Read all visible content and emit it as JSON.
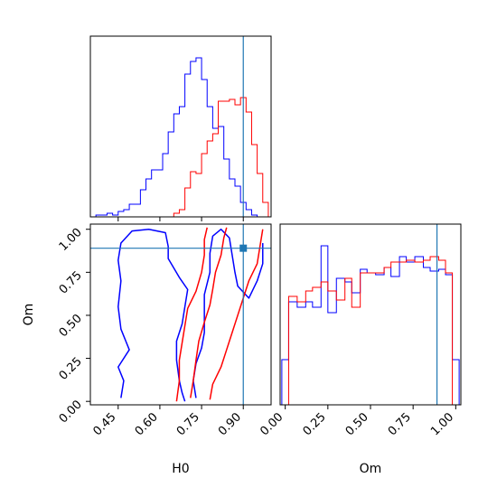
{
  "chart_data": {
    "type": "corner",
    "colors": {
      "series_a": "#0000ff",
      "series_b": "#ff0000",
      "truth": "#1f77b4"
    },
    "truth": {
      "H0": 0.9,
      "Om": 0.89
    },
    "panels": [
      {
        "id": "hist-H0",
        "type": "histogram",
        "xlim": [
          0.35,
          1.0
        ],
        "ylim": [
          0,
          1.0
        ],
        "x_ticks": [
          0.45,
          0.6,
          0.75,
          0.9
        ],
        "series": [
          {
            "color_key": "series_a",
            "bins": [
              [
                0.35,
                0.37,
                0
              ],
              [
                0.37,
                0.39,
                0.01
              ],
              [
                0.39,
                0.41,
                0.01
              ],
              [
                0.41,
                0.43,
                0.02
              ],
              [
                0.43,
                0.45,
                0.01
              ],
              [
                0.45,
                0.47,
                0.03
              ],
              [
                0.47,
                0.49,
                0.04
              ],
              [
                0.49,
                0.51,
                0.07
              ],
              [
                0.51,
                0.53,
                0.07
              ],
              [
                0.53,
                0.55,
                0.15
              ],
              [
                0.55,
                0.57,
                0.21
              ],
              [
                0.57,
                0.59,
                0.26
              ],
              [
                0.59,
                0.61,
                0.26
              ],
              [
                0.61,
                0.63,
                0.35
              ],
              [
                0.63,
                0.65,
                0.47
              ],
              [
                0.65,
                0.67,
                0.57
              ],
              [
                0.67,
                0.69,
                0.61
              ],
              [
                0.69,
                0.71,
                0.79
              ],
              [
                0.71,
                0.73,
                0.86
              ],
              [
                0.73,
                0.75,
                0.88
              ],
              [
                0.75,
                0.77,
                0.76
              ],
              [
                0.77,
                0.79,
                0.61
              ],
              [
                0.79,
                0.81,
                0.49
              ],
              [
                0.81,
                0.83,
                0.5
              ],
              [
                0.83,
                0.85,
                0.32
              ],
              [
                0.85,
                0.87,
                0.21
              ],
              [
                0.87,
                0.89,
                0.17
              ],
              [
                0.89,
                0.91,
                0.08
              ],
              [
                0.91,
                0.93,
                0.04
              ],
              [
                0.93,
                0.95,
                0.01
              ]
            ]
          },
          {
            "color_key": "series_b",
            "bins": [
              [
                0.63,
                0.65,
                0
              ],
              [
                0.65,
                0.67,
                0.02
              ],
              [
                0.67,
                0.69,
                0.04
              ],
              [
                0.69,
                0.71,
                0.16
              ],
              [
                0.71,
                0.73,
                0.25
              ],
              [
                0.73,
                0.75,
                0.24
              ],
              [
                0.75,
                0.77,
                0.35
              ],
              [
                0.77,
                0.79,
                0.42
              ],
              [
                0.79,
                0.81,
                0.46
              ],
              [
                0.81,
                0.83,
                0.64
              ],
              [
                0.83,
                0.85,
                0.64
              ],
              [
                0.85,
                0.87,
                0.65
              ],
              [
                0.87,
                0.89,
                0.62
              ],
              [
                0.89,
                0.91,
                0.66
              ],
              [
                0.91,
                0.93,
                0.58
              ],
              [
                0.93,
                0.95,
                0.4
              ],
              [
                0.95,
                0.97,
                0.24
              ],
              [
                0.97,
                0.99,
                0.08
              ]
            ]
          }
        ]
      },
      {
        "id": "contour-H0-Om",
        "type": "contour",
        "xlabel": "H0",
        "ylabel": "Om",
        "xlim": [
          0.35,
          1.0
        ],
        "ylim": [
          -0.02,
          1.03
        ],
        "x_ticks": [
          0.45,
          0.6,
          0.75,
          0.9
        ],
        "y_ticks": [
          0.0,
          0.25,
          0.5,
          0.75,
          1.0
        ],
        "series": [
          {
            "color_key": "series_a",
            "contours": [
              [
                [
                  0.46,
                  0.02
                ],
                [
                  0.47,
                  0.12
                ],
                [
                  0.45,
                  0.2
                ],
                [
                  0.49,
                  0.3
                ],
                [
                  0.46,
                  0.42
                ],
                [
                  0.45,
                  0.55
                ],
                [
                  0.46,
                  0.7
                ],
                [
                  0.45,
                  0.82
                ],
                [
                  0.46,
                  0.92
                ],
                [
                  0.5,
                  0.99
                ],
                [
                  0.56,
                  1.0
                ],
                [
                  0.62,
                  0.98
                ],
                [
                  0.63,
                  0.9
                ],
                [
                  0.63,
                  0.83
                ],
                [
                  0.67,
                  0.72
                ],
                [
                  0.7,
                  0.65
                ],
                [
                  0.69,
                  0.55
                ],
                [
                  0.68,
                  0.45
                ],
                [
                  0.66,
                  0.35
                ],
                [
                  0.66,
                  0.24
                ],
                [
                  0.67,
                  0.12
                ],
                [
                  0.68,
                  0.05
                ],
                [
                  0.69,
                  0.0
                ]
              ],
              [
                [
                  0.73,
                  0.02
                ],
                [
                  0.72,
                  0.12
                ],
                [
                  0.73,
                  0.22
                ],
                [
                  0.75,
                  0.31
                ],
                [
                  0.76,
                  0.4
                ],
                [
                  0.76,
                  0.5
                ],
                [
                  0.76,
                  0.62
                ],
                [
                  0.78,
                  0.75
                ],
                [
                  0.78,
                  0.86
                ],
                [
                  0.79,
                  0.96
                ],
                [
                  0.82,
                  1.0
                ],
                [
                  0.85,
                  0.95
                ],
                [
                  0.86,
                  0.85
                ],
                [
                  0.87,
                  0.75
                ],
                [
                  0.88,
                  0.67
                ],
                [
                  0.92,
                  0.6
                ],
                [
                  0.95,
                  0.7
                ],
                [
                  0.97,
                  0.8
                ],
                [
                  0.97,
                  0.92
                ]
              ]
            ]
          },
          {
            "color_key": "series_b",
            "contours": [
              [
                [
                  0.66,
                  0.0
                ],
                [
                  0.67,
                  0.12
                ],
                [
                  0.67,
                  0.24
                ],
                [
                  0.68,
                  0.34
                ],
                [
                  0.69,
                  0.44
                ],
                [
                  0.7,
                  0.54
                ],
                [
                  0.73,
                  0.64
                ],
                [
                  0.75,
                  0.75
                ],
                [
                  0.76,
                  0.85
                ],
                [
                  0.76,
                  0.94
                ],
                [
                  0.77,
                  1.01
                ]
              ],
              [
                [
                  0.71,
                  0.02
                ],
                [
                  0.72,
                  0.12
                ],
                [
                  0.73,
                  0.24
                ],
                [
                  0.74,
                  0.35
                ],
                [
                  0.76,
                  0.46
                ],
                [
                  0.78,
                  0.56
                ],
                [
                  0.79,
                  0.65
                ],
                [
                  0.8,
                  0.75
                ],
                [
                  0.82,
                  0.85
                ],
                [
                  0.83,
                  0.95
                ],
                [
                  0.84,
                  1.01
                ]
              ],
              [
                [
                  0.78,
                  0.01
                ],
                [
                  0.79,
                  0.1
                ],
                [
                  0.82,
                  0.2
                ],
                [
                  0.84,
                  0.3
                ],
                [
                  0.86,
                  0.4
                ],
                [
                  0.88,
                  0.5
                ],
                [
                  0.9,
                  0.6
                ],
                [
                  0.92,
                  0.7
                ],
                [
                  0.95,
                  0.8
                ],
                [
                  0.96,
                  0.9
                ],
                [
                  0.97,
                  1.0
                ]
              ]
            ]
          }
        ]
      },
      {
        "id": "hist-Om",
        "type": "histogram",
        "xlabel": "Om",
        "xlim": [
          -0.03,
          1.03
        ],
        "ylim": [
          0,
          1.0
        ],
        "x_ticks": [
          0.0,
          0.25,
          0.5,
          0.75,
          1.0
        ],
        "series": [
          {
            "color_key": "series_a",
            "bins": [
              [
                -0.02,
                0.02,
                0.25
              ],
              [
                0.02,
                0.07,
                0.57
              ],
              [
                0.07,
                0.12,
                0.54
              ],
              [
                0.12,
                0.16,
                0.57
              ],
              [
                0.16,
                0.21,
                0.54
              ],
              [
                0.21,
                0.25,
                0.88
              ],
              [
                0.25,
                0.3,
                0.51
              ],
              [
                0.3,
                0.35,
                0.7
              ],
              [
                0.35,
                0.39,
                0.68
              ],
              [
                0.39,
                0.44,
                0.62
              ],
              [
                0.44,
                0.48,
                0.75
              ],
              [
                0.48,
                0.53,
                0.73
              ],
              [
                0.53,
                0.58,
                0.72
              ],
              [
                0.58,
                0.62,
                0.76
              ],
              [
                0.62,
                0.67,
                0.71
              ],
              [
                0.67,
                0.71,
                0.82
              ],
              [
                0.71,
                0.76,
                0.79
              ],
              [
                0.76,
                0.81,
                0.82
              ],
              [
                0.81,
                0.85,
                0.76
              ],
              [
                0.85,
                0.9,
                0.74
              ],
              [
                0.9,
                0.94,
                0.75
              ],
              [
                0.94,
                0.98,
                0.72
              ],
              [
                0.98,
                1.02,
                0.25
              ]
            ]
          },
          {
            "color_key": "series_b",
            "bins": [
              [
                -0.02,
                0.02,
                0.0
              ],
              [
                0.02,
                0.07,
                0.6
              ],
              [
                0.07,
                0.12,
                0.57
              ],
              [
                0.12,
                0.16,
                0.63
              ],
              [
                0.16,
                0.21,
                0.65
              ],
              [
                0.21,
                0.25,
                0.68
              ],
              [
                0.25,
                0.3,
                0.63
              ],
              [
                0.3,
                0.35,
                0.58
              ],
              [
                0.35,
                0.39,
                0.7
              ],
              [
                0.39,
                0.44,
                0.54
              ],
              [
                0.44,
                0.48,
                0.73
              ],
              [
                0.48,
                0.53,
                0.73
              ],
              [
                0.53,
                0.58,
                0.73
              ],
              [
                0.58,
                0.62,
                0.76
              ],
              [
                0.62,
                0.67,
                0.79
              ],
              [
                0.67,
                0.71,
                0.79
              ],
              [
                0.71,
                0.76,
                0.8
              ],
              [
                0.76,
                0.81,
                0.79
              ],
              [
                0.81,
                0.85,
                0.8
              ],
              [
                0.85,
                0.9,
                0.82
              ],
              [
                0.9,
                0.94,
                0.8
              ],
              [
                0.94,
                0.98,
                0.73
              ],
              [
                0.98,
                1.02,
                0.0
              ]
            ]
          }
        ]
      }
    ]
  }
}
